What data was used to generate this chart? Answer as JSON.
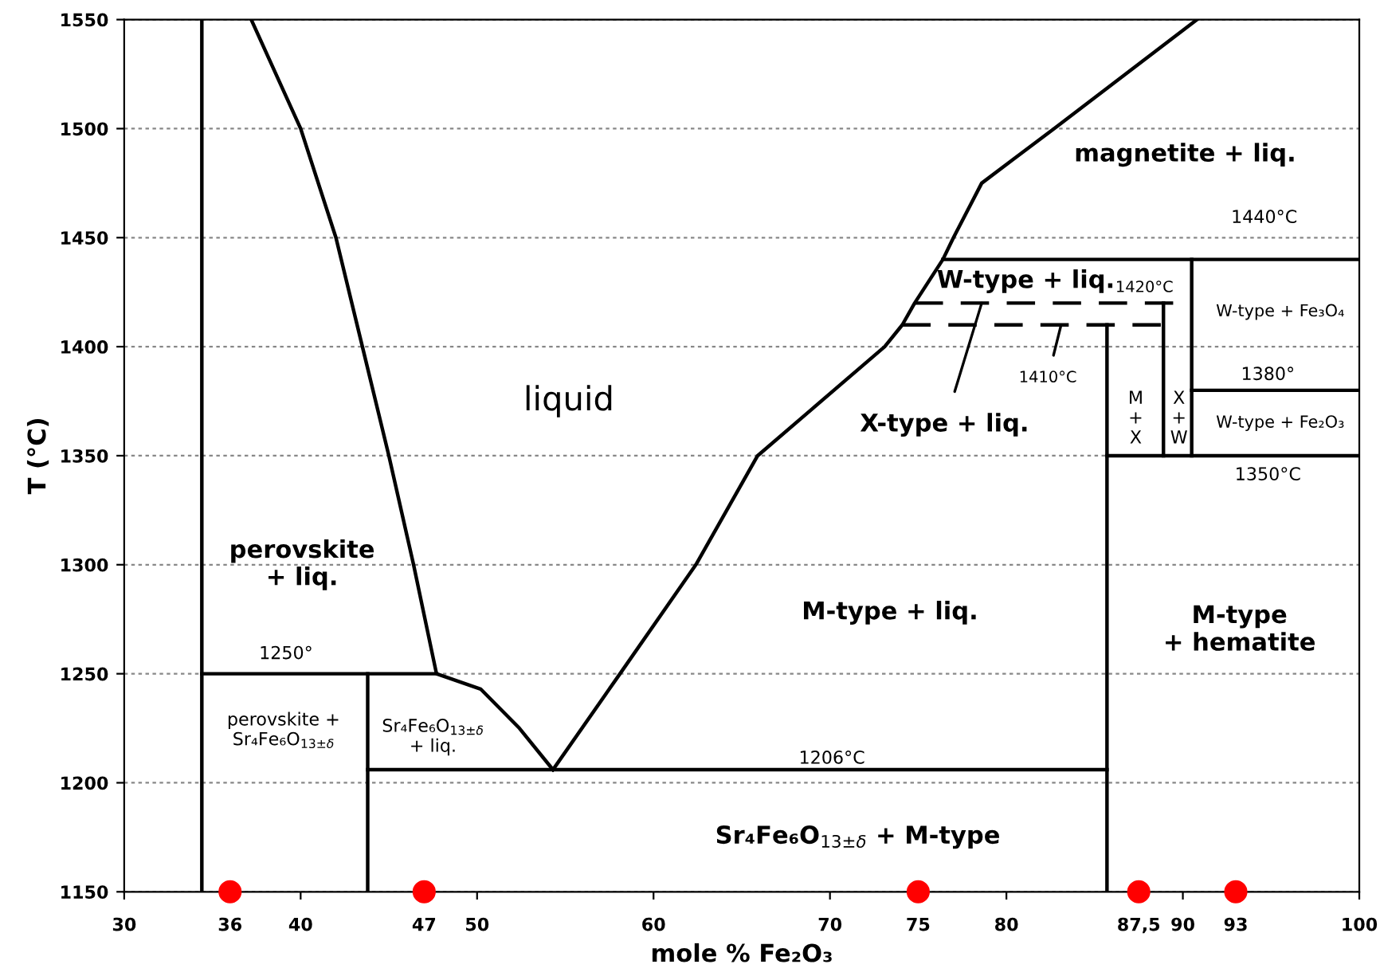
{
  "chart_data": {
    "type": "line",
    "xlabel": "mole % Fe₂O₃",
    "ylabel": "T (°C)",
    "xlim": [
      30,
      100
    ],
    "ylim": [
      1150,
      1550
    ],
    "xticks": [
      30,
      36,
      40,
      47,
      50,
      60,
      70,
      75,
      80,
      {
        "value": 87.5,
        "label": "87,5"
      },
      90,
      93,
      100
    ],
    "yticks": [
      1150,
      1200,
      1250,
      1300,
      1350,
      1400,
      1450,
      1500,
      1550
    ],
    "grid": "y",
    "line_style": "solid",
    "marker": "none",
    "series": [
      {
        "color": "#000000",
        "x": [
          34.4,
          34.4
        ],
        "values": [
          1150,
          1550
        ]
      },
      {
        "color": "#000000",
        "x": [
          37.2,
          40.0,
          42.0,
          43.5,
          45.0,
          46.4,
          47.7,
          50.2,
          52.4,
          54.3
        ],
        "values": [
          1550,
          1500,
          1450,
          1400,
          1350,
          1300,
          1250,
          1243,
          1225,
          1206
        ]
      },
      {
        "color": "#000000",
        "x": [
          54.3,
          58.1,
          62.4,
          65.9,
          73.1,
          74.1,
          74.8,
          76.4,
          77.0,
          78.6,
          82.7,
          90.8
        ],
        "values": [
          1206,
          1250,
          1300,
          1350,
          1400,
          1410,
          1420,
          1440,
          1450,
          1475,
          1500,
          1550
        ]
      },
      {
        "color": "#000000",
        "x": [
          34.4,
          47.7
        ],
        "values": [
          1250,
          1250
        ]
      },
      {
        "color": "#000000",
        "x": [
          43.8,
          43.8
        ],
        "values": [
          1150,
          1250
        ]
      },
      {
        "color": "#000000",
        "x": [
          43.8,
          85.7
        ],
        "values": [
          1206,
          1206
        ]
      },
      {
        "color": "#000000",
        "x": [
          85.7,
          85.7
        ],
        "values": [
          1150,
          1410
        ]
      },
      {
        "color": "#000000",
        "x": [
          85.7,
          100
        ],
        "values": [
          1350,
          1350
        ]
      },
      {
        "color": "#000000",
        "x": [
          76.4,
          100
        ],
        "values": [
          1440,
          1440
        ]
      },
      {
        "color": "#000000",
        "x": [
          90.5,
          90.5
        ],
        "values": [
          1350,
          1440
        ]
      },
      {
        "color": "#000000",
        "x": [
          90.5,
          100
        ],
        "values": [
          1380,
          1380
        ]
      },
      {
        "color": "#000000",
        "x": [
          88.9,
          88.9
        ],
        "values": [
          1350,
          1420
        ]
      },
      {
        "color": "#000000",
        "line_style": "dashed",
        "x": [
          74.8,
          90.5
        ],
        "values": [
          1420,
          1420
        ]
      },
      {
        "color": "#000000",
        "line_style": "dashed",
        "x": [
          74.1,
          88.9
        ],
        "values": [
          1410,
          1410
        ]
      },
      {
        "type": "scatter",
        "marker": "circle",
        "color": "#ff0000",
        "x": [
          36,
          47,
          75,
          87.5,
          93
        ],
        "values": [
          1150,
          1150,
          1150,
          1150,
          1150
        ]
      }
    ],
    "annotations": [
      "liquid",
      "magnetite + liq.",
      "1440°C",
      "W-type + liq.",
      "1420°C",
      "W-type + Fe₃O₄",
      {
        "text": "1410°C",
        "x": 83.1,
        "y": 1410
      },
      "M\n+\nX",
      "X\n+\nW",
      "1380°",
      "W-type + Fe₂O₃",
      "1350°C",
      {
        "text": "X-type + liq.",
        "x": 78.6,
        "y": 1420
      },
      "perovskite\n+ liq.",
      "1250°",
      "perovskite +\nSr₄Fe₆O$_{13±δ}$",
      "Sr₄Fe₆O$_{13±δ}$\n+ liq.",
      "1206°C",
      "M-type + liq.",
      "M-type\n+ hematite",
      "Sr₄Fe₆O$_{13±δ}$ + M-type"
    ]
  }
}
